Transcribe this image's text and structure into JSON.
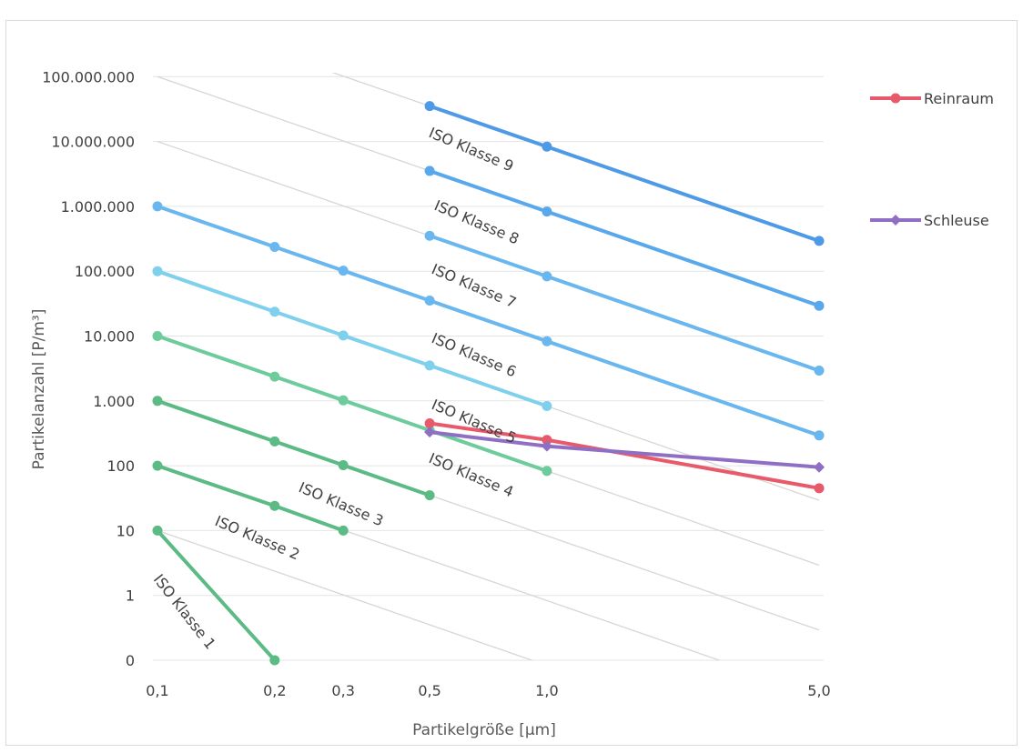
{
  "page": {
    "title": ""
  },
  "chart_data": {
    "type": "line",
    "title": "",
    "xlabel": "Partikelgröße [µm]",
    "ylabel": "Partikelanzahl [P/m³]",
    "x_scale": "log",
    "y_scale": "log",
    "x_ticks": [
      {
        "value": 0.1,
        "label": "0,1"
      },
      {
        "value": 0.2,
        "label": "0,2"
      },
      {
        "value": 0.3,
        "label": "0,3"
      },
      {
        "value": 0.5,
        "label": "0,5"
      },
      {
        "value": 1.0,
        "label": "1,0"
      },
      {
        "value": 5.0,
        "label": "5,0"
      }
    ],
    "y_ticks": [
      {
        "value": 0.1,
        "label": "0"
      },
      {
        "value": 1,
        "label": "1"
      },
      {
        "value": 10,
        "label": "10"
      },
      {
        "value": 100,
        "label": "100"
      },
      {
        "value": 1000,
        "label": "1.000"
      },
      {
        "value": 10000,
        "label": "10.000"
      },
      {
        "value": 100000,
        "label": "100.000"
      },
      {
        "value": 1000000,
        "label": "1.000.000"
      },
      {
        "value": 10000000,
        "label": "10.000.000"
      },
      {
        "value": 100000000,
        "label": "100.000.000"
      }
    ],
    "ylim": [
      0.1,
      100000000
    ],
    "grid": "horizontal",
    "legend": {
      "position": "right"
    },
    "iso_classes": [
      {
        "label": "ISO Klasse 1",
        "color": "#5cba85",
        "x": [
          0.1,
          0.2
        ],
        "y": [
          10,
          0.1
        ]
      },
      {
        "label": "ISO Klasse 2",
        "color": "#5cba85",
        "x": [
          0.1,
          0.2,
          0.3
        ],
        "y": [
          100,
          24,
          10
        ]
      },
      {
        "label": "ISO Klasse 3",
        "color": "#5cba85",
        "x": [
          0.1,
          0.2,
          0.3,
          0.5
        ],
        "y": [
          1000,
          237,
          102,
          35
        ]
      },
      {
        "label": "ISO Klasse 4",
        "color": "#6ecb9c",
        "x": [
          0.1,
          0.2,
          0.3,
          0.5,
          1.0
        ],
        "y": [
          10000,
          2370,
          1020,
          352,
          83
        ]
      },
      {
        "label": "ISO Klasse 5",
        "color": "#7ed0ed",
        "x": [
          0.1,
          0.2,
          0.3,
          0.5,
          1.0
        ],
        "y": [
          100000,
          23700,
          10200,
          3520,
          832
        ]
      },
      {
        "label": "ISO Klasse 6",
        "color": "#6ab7ef",
        "x": [
          0.1,
          0.2,
          0.3,
          0.5,
          1.0,
          5.0
        ],
        "y": [
          1000000,
          237000,
          102000,
          35200,
          8320,
          293
        ]
      },
      {
        "label": "ISO Klasse 7",
        "color": "#6ab7ef",
        "x": [
          0.5,
          1.0,
          5.0
        ],
        "y": [
          352000,
          83200,
          2930
        ]
      },
      {
        "label": "ISO Klasse 8",
        "color": "#5aa8ec",
        "x": [
          0.5,
          1.0,
          5.0
        ],
        "y": [
          3520000,
          832000,
          29300
        ]
      },
      {
        "label": "ISO Klasse 9",
        "color": "#4f9ae6",
        "x": [
          0.5,
          1.0,
          5.0
        ],
        "y": [
          35200000,
          8320000,
          293000
        ]
      }
    ],
    "series": [
      {
        "name": "Reinraum",
        "color": "#e85a6a",
        "marker": "circle",
        "x": [
          0.5,
          1.0,
          5.0
        ],
        "y": [
          450,
          250,
          45
        ]
      },
      {
        "name": "Schleuse",
        "color": "#8f6fc4",
        "marker": "diamond",
        "x": [
          0.5,
          1.0,
          5.0
        ],
        "y": [
          330,
          200,
          95
        ]
      }
    ]
  }
}
